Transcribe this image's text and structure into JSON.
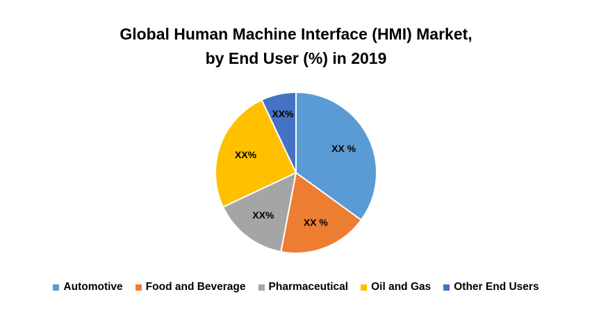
{
  "chart_data": {
    "type": "pie",
    "title_lines": [
      "Global Human Machine Interface (HMI) Market,",
      "by End User (%) in 2019"
    ],
    "categories": [
      "Automotive",
      "Food and Beverage",
      "Pharmaceutical",
      "Oil and Gas",
      "Other End Users"
    ],
    "values": [
      35,
      18,
      15,
      25,
      7
    ],
    "data_labels": [
      "XX %",
      "XX %",
      "XX%",
      "XX%",
      "XX%"
    ],
    "colors": [
      "#5B9BD5",
      "#ED7D31",
      "#A5A5A5",
      "#FFC000",
      "#4472C4"
    ],
    "start_angle_deg": 0,
    "direction": "clockwise",
    "legend_position": "bottom"
  }
}
